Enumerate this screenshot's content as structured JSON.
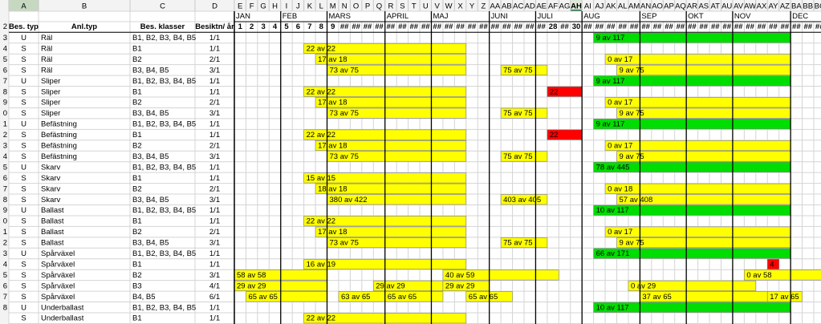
{
  "column_letters": [
    "A",
    "B",
    "C",
    "D",
    "E",
    "F",
    "G",
    "H",
    "I",
    "J",
    "K",
    "L",
    "M",
    "N",
    "O",
    "P",
    "Q",
    "R",
    "S",
    "T",
    "U",
    "V",
    "W",
    "X",
    "Y",
    "Z",
    "AA",
    "AB",
    "AC",
    "AD",
    "AE",
    "AF",
    "AG",
    "AH",
    "AI",
    "AJ",
    "AK",
    "AL",
    "AM",
    "AN",
    "AO",
    "AP",
    "AQ",
    "AR",
    "AS",
    "AT",
    "AU",
    "AV",
    "AW",
    "AX",
    "AY",
    "AZ",
    "BA",
    "BB",
    "BC"
  ],
  "months": [
    "JAN",
    "FEB",
    "MARS",
    "APRIL",
    "MAJ",
    "JUNI",
    "JULI",
    "AUG",
    "SEP",
    "OKT",
    "NOV",
    "DEC"
  ],
  "headers": [
    "Bes. typ",
    "Anl.typ",
    "Bes. klasser",
    "Besiktn/ år"
  ],
  "header_row_number": "2",
  "week_numbers": [
    "1",
    "2",
    "3",
    "4",
    "5",
    "6",
    "7",
    "8",
    "9",
    "##",
    "##",
    "##",
    "##",
    "##",
    "##",
    "##",
    "##",
    "##",
    "##",
    "##",
    "##",
    "##",
    "##",
    "##",
    "##",
    "##",
    "##",
    "28",
    "##",
    "30",
    "##",
    "##",
    "##",
    "##",
    "##",
    "##",
    "##",
    "##",
    "##",
    "##",
    "##",
    "##",
    "##",
    "##",
    "##",
    "##",
    "##",
    "##",
    "##",
    "##",
    "##"
  ],
  "rows": [
    {
      "number": "3",
      "cells": [
        "U",
        "Räl",
        "B1, B2, B3, B4, B5",
        "1/1"
      ],
      "bars": [
        {
          "label": "9 av 117",
          "color": "#00dd00"
        }
      ]
    },
    {
      "number": "4",
      "cells": [
        "S",
        "Räl",
        "B1",
        "1/1"
      ],
      "bars": [
        {
          "label": "22 av 22",
          "color": "#ffff00"
        }
      ]
    },
    {
      "number": "5",
      "cells": [
        "S",
        "Räl",
        "B2",
        "2/1"
      ],
      "bars": [
        {
          "label": "17 av 18",
          "color": "#ffff00"
        },
        {
          "label": "0 av 17",
          "color": "#ffff00"
        }
      ]
    },
    {
      "number": "6",
      "cells": [
        "S",
        "Räl",
        "B3, B4, B5",
        "3/1"
      ],
      "bars": [
        {
          "label": "73 av 75",
          "color": "#ffff00"
        },
        {
          "label": "75 av 75",
          "color": "#ffff00"
        },
        {
          "label": "9 av 75",
          "color": "#ffff00"
        }
      ]
    },
    {
      "number": "7",
      "cells": [
        "U",
        "Sliper",
        "B1, B2, B3, B4, B5",
        "1/1"
      ],
      "bars": [
        {
          "label": "9 av 117",
          "color": "#00dd00"
        }
      ]
    },
    {
      "number": "8",
      "cells": [
        "S",
        "Sliper",
        "B1",
        "1/1"
      ],
      "bars": [
        {
          "label": "22 av 22",
          "color": "#ffff00"
        },
        {
          "label": "22",
          "color": "#ff0000"
        }
      ]
    },
    {
      "number": "9",
      "cells": [
        "S",
        "Sliper",
        "B2",
        "2/1"
      ],
      "bars": [
        {
          "label": "17 av 18",
          "color": "#ffff00"
        },
        {
          "label": "0 av 17",
          "color": "#ffff00"
        }
      ]
    },
    {
      "number": "0",
      "cells": [
        "S",
        "Sliper",
        "B3, B4, B5",
        "3/1"
      ],
      "bars": [
        {
          "label": "73 av 75",
          "color": "#ffff00"
        },
        {
          "label": "75 av 75",
          "color": "#ffff00"
        },
        {
          "label": "9 av 75",
          "color": "#ffff00"
        }
      ]
    },
    {
      "number": "1",
      "cells": [
        "U",
        "Befästning",
        "B1, B2, B3, B4, B5",
        "1/1"
      ],
      "bars": [
        {
          "label": "9 av 117",
          "color": "#00dd00"
        }
      ]
    },
    {
      "number": "2",
      "cells": [
        "S",
        "Befästning",
        "B1",
        "1/1"
      ],
      "bars": [
        {
          "label": "22 av 22",
          "color": "#ffff00"
        },
        {
          "label": "22",
          "color": "#ff0000"
        }
      ]
    },
    {
      "number": "3",
      "cells": [
        "S",
        "Befästning",
        "B2",
        "2/1"
      ],
      "bars": [
        {
          "label": "17 av 18",
          "color": "#ffff00"
        },
        {
          "label": "0 av 17",
          "color": "#ffff00"
        }
      ]
    },
    {
      "number": "4",
      "cells": [
        "S",
        "Befästning",
        "B3, B4, B5",
        "3/1"
      ],
      "bars": [
        {
          "label": "73 av 75",
          "color": "#ffff00"
        },
        {
          "label": "75 av 75",
          "color": "#ffff00"
        },
        {
          "label": "9 av 75",
          "color": "#ffff00"
        }
      ]
    },
    {
      "number": "5",
      "cells": [
        "U",
        "Skarv",
        "B1, B2, B3, B4, B5",
        "1/1"
      ],
      "bars": [
        {
          "label": "78 av 445",
          "color": "#00dd00"
        }
      ]
    },
    {
      "number": "6",
      "cells": [
        "S",
        "Skarv",
        "B1",
        "1/1"
      ],
      "bars": [
        {
          "label": "15 av 15",
          "color": "#ffff00"
        }
      ]
    },
    {
      "number": "7",
      "cells": [
        "S",
        "Skarv",
        "B2",
        "2/1"
      ],
      "bars": [
        {
          "label": "18 av 18",
          "color": "#ffff00"
        },
        {
          "label": "0 av 18",
          "color": "#ffff00"
        }
      ]
    },
    {
      "number": "8",
      "cells": [
        "S",
        "Skarv",
        "B3, B4, B5",
        "3/1"
      ],
      "bars": [
        {
          "label": "380 av 422",
          "color": "#ffff00"
        },
        {
          "label": "403 av 405",
          "color": "#ffff00"
        },
        {
          "label": "57 av 408",
          "color": "#ffff00"
        }
      ]
    },
    {
      "number": "9",
      "cells": [
        "U",
        "Ballast",
        "B1, B2, B3, B4, B5",
        "1/1"
      ],
      "bars": [
        {
          "label": "10 av 117",
          "color": "#00dd00"
        }
      ]
    },
    {
      "number": "0",
      "cells": [
        "S",
        "Ballast",
        "B1",
        "1/1"
      ],
      "bars": [
        {
          "label": "22 av 22",
          "color": "#ffff00"
        }
      ]
    },
    {
      "number": "1",
      "cells": [
        "S",
        "Ballast",
        "B2",
        "2/1"
      ],
      "bars": [
        {
          "label": "17 av 18",
          "color": "#ffff00"
        },
        {
          "label": "0 av 17",
          "color": "#ffff00"
        }
      ]
    },
    {
      "number": "2",
      "cells": [
        "S",
        "Ballast",
        "B3, B4, B5",
        "3/1"
      ],
      "bars": [
        {
          "label": "73 av 75",
          "color": "#ffff00"
        },
        {
          "label": "75 av 75",
          "color": "#ffff00"
        },
        {
          "label": "9 av 75",
          "color": "#ffff00"
        }
      ]
    },
    {
      "number": "3",
      "cells": [
        "U",
        "Spårväxel",
        "B1, B2, B3, B4, B5",
        "1/1"
      ],
      "bars": [
        {
          "label": "66 av 171",
          "color": "#00dd00"
        }
      ]
    },
    {
      "number": "4",
      "cells": [
        "S",
        "Spårväxel",
        "B1",
        "1/1"
      ],
      "bars": [
        {
          "label": "16 av 19",
          "color": "#ffff00"
        },
        {
          "label": "4",
          "color": "#ff0000"
        }
      ]
    },
    {
      "number": "5",
      "cells": [
        "S",
        "Spårväxel",
        "B2",
        "3/1"
      ],
      "bars": [
        {
          "label": "58 av 58",
          "color": "#ffff00"
        },
        {
          "label": "40 av 59",
          "color": "#ffff00"
        },
        {
          "label": "0 av 58",
          "color": "#ffff00"
        }
      ]
    },
    {
      "number": "6",
      "cells": [
        "S",
        "Spårväxel",
        "B3",
        "4/1"
      ],
      "bars": [
        {
          "label": "29 av 29",
          "color": "#ffff00"
        },
        {
          "label": "29 av 29",
          "color": "#ffff00"
        },
        {
          "label": "29 av 29",
          "color": "#ffff00"
        },
        {
          "label": "0 av 29",
          "color": "#ffff00"
        }
      ]
    },
    {
      "number": "7",
      "cells": [
        "S",
        "Spårväxel",
        "B4, B5",
        "6/1"
      ],
      "bars": [
        {
          "label": "65 av 65",
          "color": "#ffff00"
        },
        {
          "label": "63 av 65",
          "color": "#ffff00"
        },
        {
          "label": "65 av 65",
          "color": "#ffff00"
        },
        {
          "label": "65 av 65",
          "color": "#ffff00"
        },
        {
          "label": "37 av 65",
          "color": "#ffff00"
        },
        {
          "label": "17 av 65",
          "color": "#ffff00"
        }
      ]
    },
    {
      "number": "8",
      "cells": [
        "U",
        "Underballast",
        "B1, B2, B3, B4, B5",
        "1/1"
      ],
      "bars": [
        {
          "label": "10 av 117",
          "color": "#00dd00"
        }
      ]
    },
    {
      "cells": [
        "S",
        "Underballast",
        "B1",
        "1/1"
      ],
      "bars": [
        {
          "label": "22 av 22",
          "color": "#ffff00"
        }
      ]
    }
  ]
}
